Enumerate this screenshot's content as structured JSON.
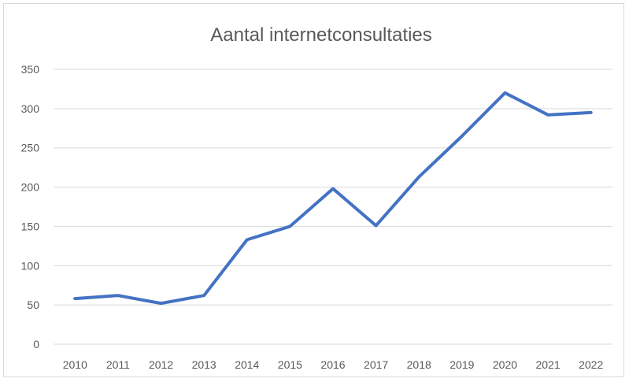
{
  "chart_data": {
    "type": "line",
    "title": "Aantal internetconsultaties",
    "xlabel": "",
    "ylabel": "",
    "categories": [
      "2010",
      "2011",
      "2012",
      "2013",
      "2014",
      "2015",
      "2016",
      "2017",
      "2018",
      "2019",
      "2020",
      "2021",
      "2022"
    ],
    "series": [
      {
        "values": [
          58,
          62,
          52,
          62,
          133,
          150,
          198,
          151,
          213,
          265,
          320,
          292,
          295
        ]
      }
    ],
    "ylim": [
      0,
      350
    ],
    "yticks": [
      "0",
      "50",
      "100",
      "150",
      "200",
      "250",
      "300",
      "350"
    ],
    "grid": true,
    "legend": "none",
    "colors": {
      "series": "#4472c4",
      "grid": "#d9d9d9",
      "text": "#595959"
    }
  }
}
